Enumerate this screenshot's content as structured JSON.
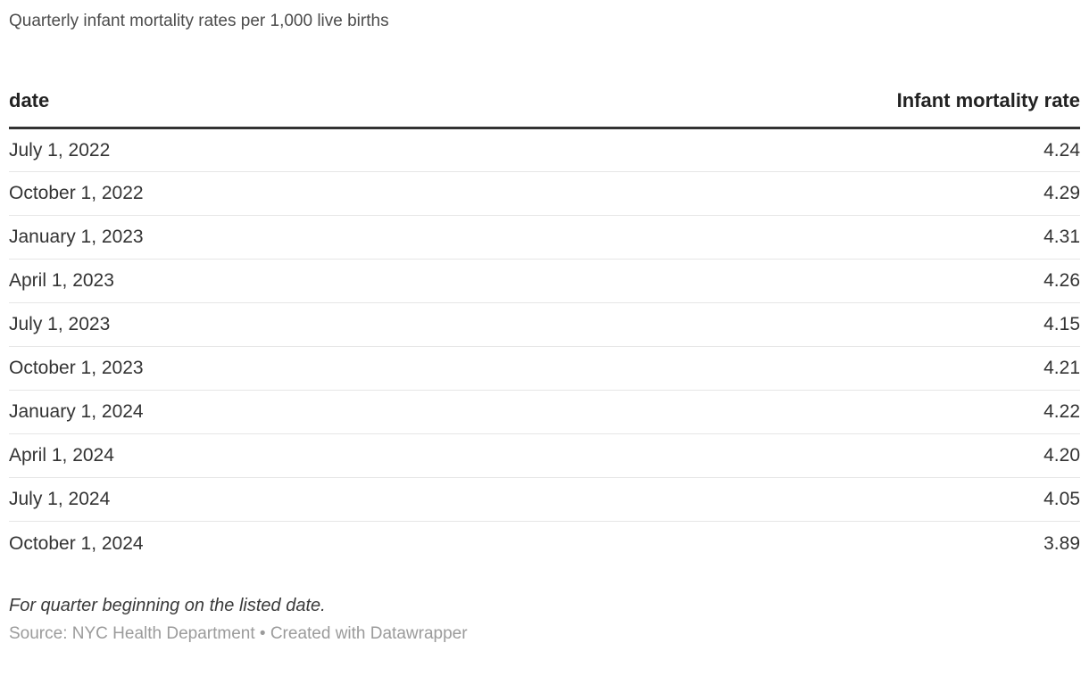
{
  "title": "Quarterly infant mortality rates per 1,000 live births",
  "table": {
    "columns": [
      {
        "label": "date",
        "align": "left"
      },
      {
        "label": "Infant mortality rate",
        "align": "right"
      }
    ],
    "rows": [
      {
        "date": "July 1, 2022",
        "value": "4.24"
      },
      {
        "date": "October 1, 2022",
        "value": "4.29"
      },
      {
        "date": "January 1, 2023",
        "value": "4.31"
      },
      {
        "date": "April 1, 2023",
        "value": "4.26"
      },
      {
        "date": "July 1, 2023",
        "value": "4.15"
      },
      {
        "date": "October 1, 2023",
        "value": "4.21"
      },
      {
        "date": "January 1, 2024",
        "value": "4.22"
      },
      {
        "date": "April 1, 2024",
        "value": "4.20"
      },
      {
        "date": "July 1, 2024",
        "value": "4.05"
      },
      {
        "date": "October 1, 2024",
        "value": "3.89"
      }
    ]
  },
  "footnote": "For quarter beginning on the listed date.",
  "source": "Source: NYC Health Department • Created with Datawrapper",
  "colors": {
    "title_color": "#4c4c4c",
    "header_color": "#222222",
    "body_color": "#333333",
    "rule_color": "#333333",
    "divider_color": "#e6e6e6",
    "footnote_color": "#3a3a3a",
    "source_color": "#9b9b9b",
    "bg_color": "#ffffff"
  },
  "chart_data": {
    "type": "table",
    "title": "Quarterly infant mortality rates per 1,000 live births",
    "columns": [
      "date",
      "Infant mortality rate"
    ],
    "categories": [
      "July 1, 2022",
      "October 1, 2022",
      "January 1, 2023",
      "April 1, 2023",
      "July 1, 2023",
      "October 1, 2023",
      "January 1, 2024",
      "April 1, 2024",
      "July 1, 2024",
      "October 1, 2024"
    ],
    "values": [
      4.24,
      4.29,
      4.31,
      4.26,
      4.15,
      4.21,
      4.22,
      4.2,
      4.05,
      3.89
    ],
    "footnote": "For quarter beginning on the listed date.",
    "source": "Source: NYC Health Department • Created with Datawrapper"
  }
}
